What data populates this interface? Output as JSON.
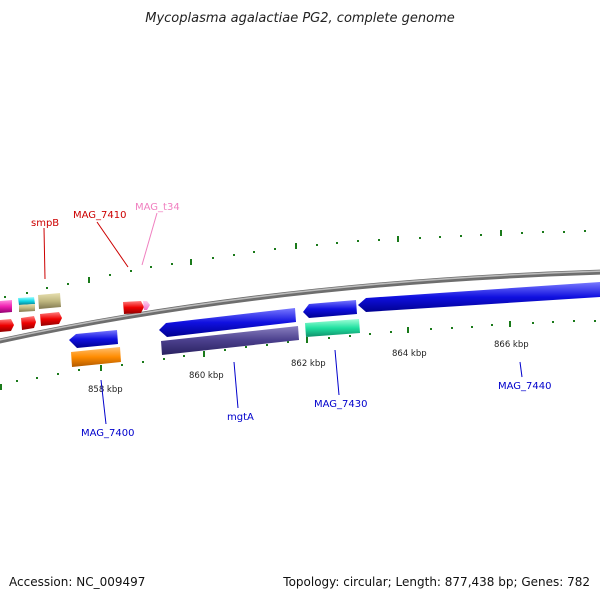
{
  "title": "Mycoplasma agalactiae PG2, complete genome",
  "footer": {
    "accession": "Accession: NC_009497",
    "summary": "Topology: circular; Length: 877,438 bp; Genes: 782"
  },
  "scale_labels": [
    "858 kbp",
    "860 kbp",
    "862 kbp",
    "864 kbp",
    "866 kbp"
  ],
  "gene_labels": {
    "smpB": "smpB",
    "mag7410": "MAG_7410",
    "magt34": "MAG_t34",
    "mag7400": "MAG_7400",
    "mgtA": "mgtA",
    "mag7430": "MAG_7430",
    "mag7440": "MAG_7440"
  },
  "colors": {
    "forward_label": "#cc0000",
    "trna_label": "#f080c0",
    "reverse_label": "#0000cc",
    "tick": "#1a7a1a",
    "backbone": "#888888"
  }
}
